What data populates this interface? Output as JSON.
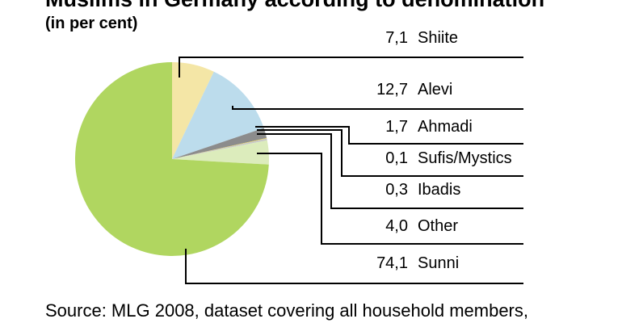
{
  "title": "Muslims in Germany according to denomination",
  "subtitle": "(in per cent)",
  "source": "Source: MLG 2008, dataset covering all household members,",
  "chart_data": {
    "type": "pie",
    "title": "Muslims in Germany according to denomination",
    "subtitle": "(in per cent)",
    "slices": [
      {
        "label": "Shiite",
        "value": 7.1,
        "display": "7,1",
        "color": "#f4e6a6"
      },
      {
        "label": "Alevi",
        "value": 12.7,
        "display": "12,7",
        "color": "#bcdcec"
      },
      {
        "label": "Ahmadi",
        "value": 1.7,
        "display": "1,7",
        "color": "#8c8c8c"
      },
      {
        "label": "Sufis/Mystics",
        "value": 0.1,
        "display": "0,1",
        "color": "#e8d040"
      },
      {
        "label": "Ibadis",
        "value": 0.3,
        "display": "0,3",
        "color": "#c8c8c8"
      },
      {
        "label": "Other",
        "value": 4.0,
        "display": "4,0",
        "color": "#dcecbc"
      },
      {
        "label": "Sunni",
        "value": 74.1,
        "display": "74,1",
        "color": "#b0d660"
      }
    ],
    "legend": "right"
  }
}
